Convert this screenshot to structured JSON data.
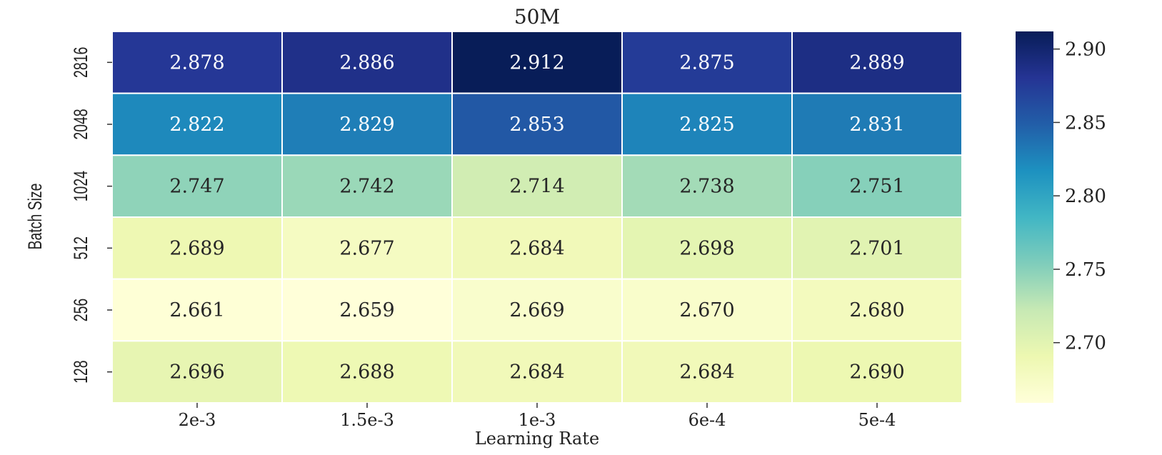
{
  "chart_data": {
    "type": "heatmap",
    "title": "50M",
    "xlabel": "Learning Rate",
    "ylabel": "Batch Size",
    "x_categories": [
      "2e-3",
      "1.5e-3",
      "1e-3",
      "6e-4",
      "5e-4"
    ],
    "y_categories": [
      "2816",
      "2048",
      "1024",
      "512",
      "256",
      "128"
    ],
    "values": [
      [
        2.878,
        2.886,
        2.912,
        2.875,
        2.889
      ],
      [
        2.822,
        2.829,
        2.853,
        2.825,
        2.831
      ],
      [
        2.747,
        2.742,
        2.714,
        2.738,
        2.751
      ],
      [
        2.689,
        2.677,
        2.684,
        2.698,
        2.701
      ],
      [
        2.661,
        2.659,
        2.669,
        2.67,
        2.68
      ],
      [
        2.696,
        2.688,
        2.684,
        2.684,
        2.69
      ]
    ],
    "value_format": "3 decimals",
    "colorbar": {
      "cmap": "YlGnBu",
      "range": [
        2.659,
        2.912
      ],
      "ticks": [
        2.7,
        2.75,
        2.8,
        2.85,
        2.9
      ],
      "tick_labels": [
        "2.70",
        "2.75",
        "2.80",
        "2.85",
        "2.90"
      ]
    },
    "grid": false,
    "legend": "colorbar-right"
  }
}
